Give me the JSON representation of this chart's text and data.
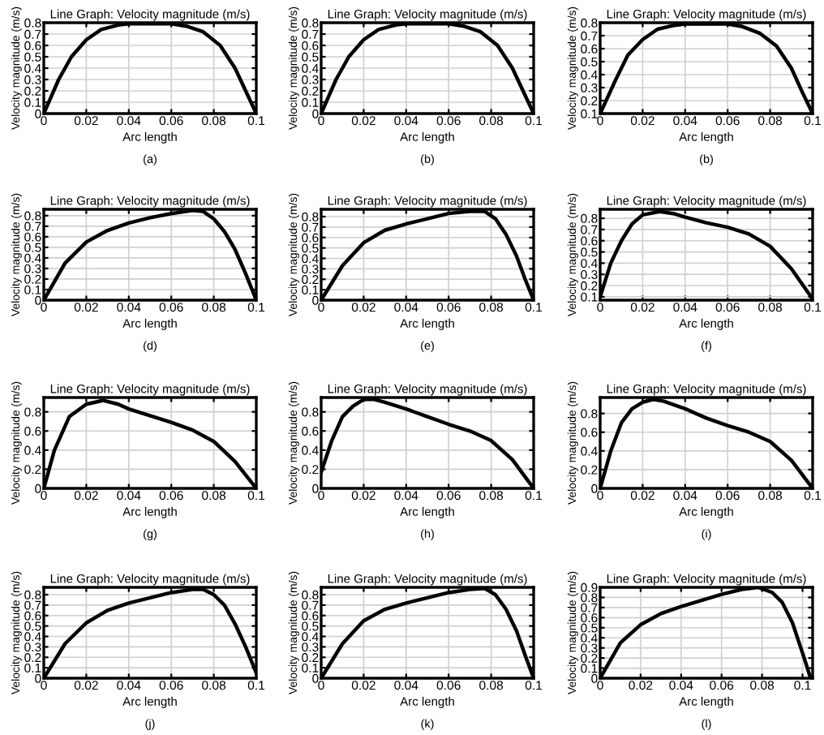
{
  "chart_data": [
    {
      "type": "line",
      "title": "Line Graph: Velocity magnitude (m/s)",
      "xlabel": "Arc length",
      "ylabel": "Velocity magnitude (m/s)",
      "annotations": [
        "(a)"
      ],
      "color": "#000000",
      "grid": true,
      "xlim": [
        0,
        0.1
      ],
      "ylim": [
        0,
        0.8
      ],
      "xticks": [
        0,
        0.02,
        0.04,
        0.06,
        0.08,
        0.1
      ],
      "yticks": [
        0,
        0.1,
        0.2,
        0.3,
        0.4,
        0.5,
        0.6,
        0.7,
        0.8
      ],
      "x": [
        0,
        0.007,
        0.013,
        0.02,
        0.027,
        0.035,
        0.04,
        0.05,
        0.06,
        0.067,
        0.075,
        0.083,
        0.09,
        0.095,
        0.1
      ],
      "values": [
        0,
        0.3,
        0.5,
        0.65,
        0.74,
        0.78,
        0.79,
        0.79,
        0.79,
        0.77,
        0.72,
        0.6,
        0.4,
        0.2,
        0
      ]
    },
    {
      "type": "line",
      "title": "Line Graph: Velocity magnitude (m/s)",
      "xlabel": "Arc length",
      "ylabel": "Velocity magnitude (m/s)",
      "annotations": [
        "(b)"
      ],
      "color": "#000000",
      "grid": true,
      "xlim": [
        0,
        0.1
      ],
      "ylim": [
        0,
        0.8
      ],
      "xticks": [
        0,
        0.02,
        0.04,
        0.06,
        0.08,
        0.1
      ],
      "yticks": [
        0,
        0.1,
        0.2,
        0.3,
        0.4,
        0.5,
        0.6,
        0.7,
        0.8
      ],
      "x": [
        0,
        0.007,
        0.013,
        0.02,
        0.027,
        0.035,
        0.04,
        0.05,
        0.06,
        0.067,
        0.075,
        0.083,
        0.09,
        0.095,
        0.1
      ],
      "values": [
        0,
        0.3,
        0.5,
        0.65,
        0.74,
        0.78,
        0.79,
        0.79,
        0.79,
        0.77,
        0.72,
        0.6,
        0.4,
        0.2,
        0
      ]
    },
    {
      "type": "line",
      "title": "Line Graph: Velocity magnitude (m/s)",
      "xlabel": "Arc length",
      "ylabel": "Velocity magnitude (m/s)",
      "annotations": [
        "(b)"
      ],
      "color": "#000000",
      "grid": true,
      "xlim": [
        0,
        0.1
      ],
      "ylim": [
        0.1,
        0.8
      ],
      "xticks": [
        0,
        0.02,
        0.04,
        0.06,
        0.08,
        0.1
      ],
      "yticks": [
        0.1,
        0.2,
        0.3,
        0.4,
        0.5,
        0.6,
        0.7,
        0.8
      ],
      "x": [
        0,
        0.007,
        0.013,
        0.02,
        0.027,
        0.035,
        0.04,
        0.05,
        0.06,
        0.067,
        0.075,
        0.083,
        0.09,
        0.095,
        0.1
      ],
      "values": [
        0.1,
        0.35,
        0.55,
        0.67,
        0.75,
        0.78,
        0.79,
        0.79,
        0.79,
        0.77,
        0.72,
        0.62,
        0.45,
        0.27,
        0.1
      ]
    },
    {
      "type": "line",
      "title": "Line Graph: Velocity magnitude (m/s)",
      "xlabel": "Arc length",
      "ylabel": "Velocity magnitude (m/s)",
      "annotations": [
        "(d)"
      ],
      "color": "#000000",
      "grid": true,
      "xlim": [
        0,
        0.1
      ],
      "ylim": [
        0,
        0.86
      ],
      "xticks": [
        0,
        0.02,
        0.04,
        0.06,
        0.08,
        0.1
      ],
      "yticks": [
        0,
        0.1,
        0.2,
        0.3,
        0.4,
        0.5,
        0.6,
        0.7,
        0.8
      ],
      "x": [
        0,
        0.01,
        0.02,
        0.03,
        0.04,
        0.05,
        0.06,
        0.07,
        0.075,
        0.08,
        0.085,
        0.09,
        0.095,
        0.1
      ],
      "values": [
        0,
        0.35,
        0.55,
        0.66,
        0.73,
        0.78,
        0.82,
        0.85,
        0.84,
        0.77,
        0.65,
        0.48,
        0.25,
        0
      ]
    },
    {
      "type": "line",
      "title": "Line Graph: Velocity magnitude (m/s)",
      "xlabel": "Arc length",
      "ylabel": "Velocity magnitude (m/s)",
      "annotations": [
        "(e)"
      ],
      "color": "#000000",
      "grid": true,
      "xlim": [
        0,
        0.1
      ],
      "ylim": [
        0,
        0.87
      ],
      "xticks": [
        0,
        0.02,
        0.04,
        0.06,
        0.08,
        0.1
      ],
      "yticks": [
        0,
        0.1,
        0.2,
        0.3,
        0.4,
        0.5,
        0.6,
        0.7,
        0.8
      ],
      "x": [
        0,
        0.01,
        0.02,
        0.03,
        0.04,
        0.05,
        0.06,
        0.07,
        0.077,
        0.082,
        0.087,
        0.092,
        0.096,
        0.1
      ],
      "values": [
        0,
        0.33,
        0.55,
        0.67,
        0.73,
        0.78,
        0.83,
        0.85,
        0.85,
        0.78,
        0.63,
        0.42,
        0.2,
        0
      ]
    },
    {
      "type": "line",
      "title": "Line Graph: Velocity magnitude (m/s)",
      "xlabel": "Arc length",
      "ylabel": "Velocity magnitude (m/s)",
      "annotations": [
        "(f)"
      ],
      "color": "#000000",
      "grid": true,
      "xlim": [
        0,
        0.1
      ],
      "ylim": [
        0.07,
        0.88
      ],
      "xticks": [
        0,
        0.02,
        0.04,
        0.06,
        0.08,
        0.1
      ],
      "yticks": [
        0.1,
        0.2,
        0.3,
        0.4,
        0.5,
        0.6,
        0.7,
        0.8
      ],
      "x": [
        0,
        0.005,
        0.01,
        0.015,
        0.02,
        0.028,
        0.035,
        0.04,
        0.05,
        0.06,
        0.07,
        0.08,
        0.09,
        0.1
      ],
      "values": [
        0.1,
        0.4,
        0.6,
        0.75,
        0.83,
        0.86,
        0.84,
        0.81,
        0.76,
        0.72,
        0.66,
        0.55,
        0.35,
        0.08
      ]
    },
    {
      "type": "line",
      "title": "Line Graph: Velocity magnitude (m/s)",
      "xlabel": "Arc length",
      "ylabel": "Velocity magnitude (m/s)",
      "annotations": [
        "(g)"
      ],
      "color": "#000000",
      "grid": true,
      "xlim": [
        0,
        0.1
      ],
      "ylim": [
        0,
        0.95
      ],
      "xticks": [
        0,
        0.02,
        0.04,
        0.06,
        0.08,
        0.1
      ],
      "yticks": [
        0,
        0.2,
        0.4,
        0.6,
        0.8
      ],
      "x": [
        0,
        0.005,
        0.012,
        0.02,
        0.028,
        0.035,
        0.04,
        0.05,
        0.06,
        0.07,
        0.08,
        0.09,
        0.1
      ],
      "values": [
        0,
        0.4,
        0.75,
        0.88,
        0.92,
        0.88,
        0.83,
        0.76,
        0.69,
        0.61,
        0.49,
        0.28,
        0
      ]
    },
    {
      "type": "line",
      "title": "Line Graph: Velocity magnitude (m/s)",
      "xlabel": "Arc length",
      "ylabel": "Velocity magnitude (m/s)",
      "annotations": [
        "(h)"
      ],
      "color": "#000000",
      "grid": true,
      "xlim": [
        0,
        0.1
      ],
      "ylim": [
        0,
        0.95
      ],
      "xticks": [
        0,
        0.02,
        0.04,
        0.06,
        0.08,
        0.1
      ],
      "yticks": [
        0,
        0.2,
        0.4,
        0.6,
        0.8
      ],
      "x": [
        0,
        0.005,
        0.01,
        0.015,
        0.02,
        0.025,
        0.03,
        0.04,
        0.05,
        0.06,
        0.07,
        0.08,
        0.09,
        0.1
      ],
      "values": [
        0.17,
        0.5,
        0.75,
        0.86,
        0.93,
        0.93,
        0.9,
        0.83,
        0.75,
        0.67,
        0.6,
        0.5,
        0.3,
        0
      ]
    },
    {
      "type": "line",
      "title": "Line Graph: Velocity magnitude (m/s)",
      "xlabel": "Arc length",
      "ylabel": "Velocity magnitude (m/s)",
      "annotations": [
        "(i)"
      ],
      "color": "#000000",
      "grid": true,
      "xlim": [
        0,
        0.1
      ],
      "ylim": [
        0,
        0.97
      ],
      "xticks": [
        0,
        0.02,
        0.04,
        0.06,
        0.08,
        0.1
      ],
      "yticks": [
        0,
        0.2,
        0.4,
        0.6,
        0.8
      ],
      "x": [
        0,
        0.005,
        0.01,
        0.015,
        0.02,
        0.025,
        0.03,
        0.04,
        0.05,
        0.06,
        0.07,
        0.08,
        0.09,
        0.1
      ],
      "values": [
        0,
        0.4,
        0.7,
        0.85,
        0.92,
        0.95,
        0.93,
        0.85,
        0.75,
        0.67,
        0.6,
        0.5,
        0.3,
        0
      ]
    },
    {
      "type": "line",
      "title": "Line Graph: Velocity magnitude (m/s)",
      "xlabel": "Arc length",
      "ylabel": "Velocity magnitude (m/s)",
      "annotations": [
        "(j)"
      ],
      "color": "#000000",
      "grid": true,
      "xlim": [
        0,
        0.1
      ],
      "ylim": [
        0,
        0.87
      ],
      "xticks": [
        0,
        0.02,
        0.04,
        0.06,
        0.08,
        0.1
      ],
      "yticks": [
        0,
        0.1,
        0.2,
        0.3,
        0.4,
        0.5,
        0.6,
        0.7,
        0.8
      ],
      "x": [
        0,
        0.01,
        0.02,
        0.03,
        0.04,
        0.05,
        0.06,
        0.07,
        0.075,
        0.08,
        0.085,
        0.09,
        0.095,
        0.1
      ],
      "values": [
        0,
        0.33,
        0.53,
        0.65,
        0.72,
        0.77,
        0.82,
        0.85,
        0.85,
        0.8,
        0.7,
        0.52,
        0.3,
        0.05
      ]
    },
    {
      "type": "line",
      "title": "Line Graph: Velocity magnitude (m/s)",
      "xlabel": "Arc length",
      "ylabel": "Velocity magnitude (m/s)",
      "annotations": [
        "(k)"
      ],
      "color": "#000000",
      "grid": true,
      "xlim": [
        0,
        0.1
      ],
      "ylim": [
        0,
        0.87
      ],
      "xticks": [
        0,
        0.02,
        0.04,
        0.06,
        0.08,
        0.1
      ],
      "yticks": [
        0,
        0.1,
        0.2,
        0.3,
        0.4,
        0.5,
        0.6,
        0.7,
        0.8
      ],
      "x": [
        0,
        0.01,
        0.02,
        0.03,
        0.04,
        0.05,
        0.06,
        0.07,
        0.077,
        0.082,
        0.087,
        0.092,
        0.096,
        0.1
      ],
      "values": [
        0,
        0.33,
        0.55,
        0.66,
        0.72,
        0.77,
        0.82,
        0.85,
        0.86,
        0.8,
        0.66,
        0.45,
        0.22,
        0
      ]
    },
    {
      "type": "line",
      "title": "Line Graph: Velocity magnitude (m/s)",
      "xlabel": "Arc length",
      "ylabel": "Velocity magnitude (m/s)",
      "annotations": [
        "(l)"
      ],
      "color": "#000000",
      "grid": true,
      "xlim": [
        0,
        0.105
      ],
      "ylim": [
        0,
        0.9
      ],
      "xticks": [
        0,
        0.02,
        0.04,
        0.06,
        0.08,
        0.1
      ],
      "yticks": [
        0,
        0.1,
        0.2,
        0.3,
        0.4,
        0.5,
        0.6,
        0.7,
        0.8,
        0.9
      ],
      "x": [
        0,
        0.01,
        0.02,
        0.03,
        0.04,
        0.05,
        0.06,
        0.07,
        0.078,
        0.085,
        0.09,
        0.095,
        0.1,
        0.104
      ],
      "values": [
        0,
        0.35,
        0.53,
        0.64,
        0.71,
        0.77,
        0.83,
        0.88,
        0.9,
        0.85,
        0.75,
        0.55,
        0.25,
        0
      ]
    }
  ]
}
